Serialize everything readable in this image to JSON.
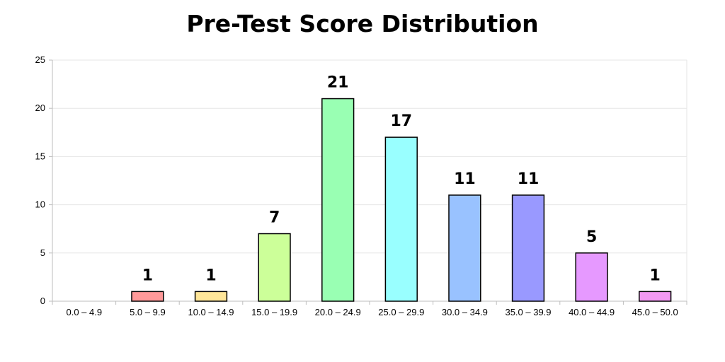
{
  "chart_data": {
    "type": "bar",
    "title": "Pre-Test Score Distribution",
    "xlabel": "",
    "ylabel": "",
    "categories": [
      "0.0 – 4.9",
      "5.0 – 9.9",
      "10.0 – 14.9",
      "15.0 – 19.9",
      "20.0 – 24.9",
      "25.0 – 29.9",
      "30.0 – 34.9",
      "35.0 – 39.9",
      "40.0 – 44.9",
      "45.0 – 50.0"
    ],
    "values": [
      0,
      1,
      1,
      7,
      21,
      17,
      11,
      11,
      5,
      1
    ],
    "data_labels": [
      "",
      "1",
      "1",
      "7",
      "21",
      "17",
      "11",
      "11",
      "5",
      "1"
    ],
    "ylim": [
      0,
      25
    ],
    "yticks": [
      0,
      5,
      10,
      15,
      20,
      25
    ],
    "ytick_labels": [
      "0",
      "5",
      "10",
      "15",
      "20",
      "25"
    ],
    "grid": true,
    "legend": "none",
    "bar_colors": [
      "#ff9999",
      "#ff9999",
      "#ffe699",
      "#ccff99",
      "#99ffb3",
      "#99ffff",
      "#99c2ff",
      "#9999ff",
      "#e699ff",
      "#f299f2"
    ]
  }
}
